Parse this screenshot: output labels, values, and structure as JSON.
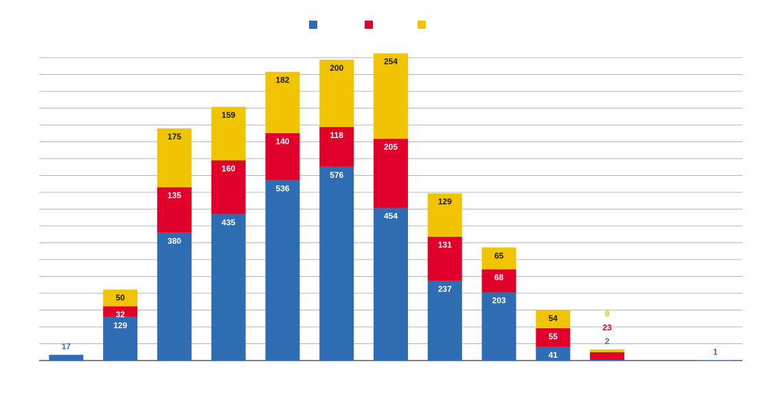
{
  "chart_data": {
    "type": "bar",
    "stacked": true,
    "categories": [
      "",
      "",
      "",
      "",
      "",
      "",
      "",
      "",
      "",
      "",
      "",
      "",
      ""
    ],
    "series": [
      {
        "values": [
          17,
          129,
          380,
          435,
          536,
          576,
          454,
          237,
          203,
          41,
          2,
          0,
          1
        ],
        "color": "#2e6db4"
      },
      {
        "values": [
          0,
          32,
          135,
          160,
          140,
          118,
          205,
          131,
          68,
          55,
          23,
          0,
          0
        ],
        "color": "#e0002a"
      },
      {
        "values": [
          0,
          50,
          175,
          159,
          182,
          200,
          254,
          129,
          65,
          54,
          8,
          0,
          0
        ],
        "color": "#f1c400"
      }
    ],
    "legend_position": "top-center",
    "ylim": [
      0,
      900
    ],
    "grid": true,
    "gridlines": 18
  }
}
